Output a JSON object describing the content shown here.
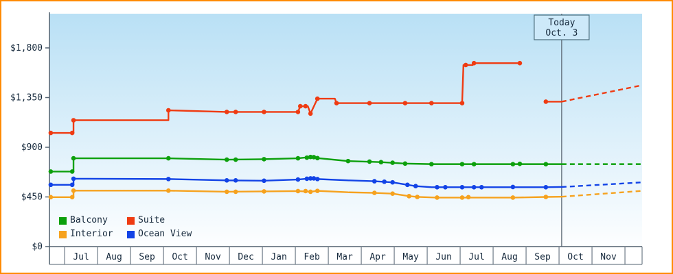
{
  "chart": {
    "colors": {
      "frame_border": "#ff8a00",
      "plot_bg_top": "#b9e0f5",
      "plot_bg_bottom": "#fdfeff",
      "axis": "#51606f",
      "text": "#16293c",
      "today_line": "#5a6672",
      "today_box_bg": "#cde9f9",
      "today_box_border": "#4a6b7a",
      "balcony": "#0ca00c",
      "suite": "#ef3b12",
      "interior": "#f6a21e",
      "ocean_view": "#1243e6"
    },
    "today_box": {
      "line1": "Today",
      "line2": "Oct. 3"
    },
    "y_axis": {
      "ticks": [
        {
          "label": "$1,800",
          "value": 1800
        },
        {
          "label": "$1,350",
          "value": 1350
        },
        {
          "label": "$900",
          "value": 900
        },
        {
          "label": "$450",
          "value": 450
        },
        {
          "label": "$0",
          "value": 0
        }
      ]
    },
    "x_axis": {
      "months": [
        "Jul",
        "Aug",
        "Sep",
        "Oct",
        "Nov",
        "Dec",
        "Jan",
        "Feb",
        "Mar",
        "Apr",
        "May",
        "Jun",
        "Jul",
        "Aug",
        "Sep",
        "Oct",
        "Nov"
      ]
    },
    "legend": [
      {
        "label": "Balcony",
        "color": "#0ca00c"
      },
      {
        "label": "Suite",
        "color": "#ef3b12"
      },
      {
        "label": "Interior",
        "color": "#f6a21e"
      },
      {
        "label": "Ocean View",
        "color": "#1243e6"
      }
    ]
  },
  "chart_data": {
    "type": "line",
    "style": "step",
    "title": "",
    "x_unit": "month index (0 = left edge of first Jul column)",
    "x_range": [
      -0.46,
      17.52
    ],
    "ylim": [
      0,
      2110
    ],
    "today_x": 15.08,
    "today_label": "Today Oct. 3",
    "grid": false,
    "legend_position": "bottom-left",
    "series": [
      {
        "id": "interior",
        "name": "Interior",
        "color": "#f6a21e",
        "segments": [
          [
            [
              -0.46,
              448
            ],
            [
              0.27,
              448
            ],
            [
              0.27,
              507
            ],
            [
              3.15,
              507
            ],
            [
              4.92,
              497
            ],
            [
              6.05,
              500
            ],
            [
              7.08,
              503
            ],
            [
              7.46,
              497
            ],
            [
              7.67,
              505
            ],
            [
              8.6,
              492
            ],
            [
              9.4,
              487
            ],
            [
              9.95,
              480
            ],
            [
              10.45,
              457
            ],
            [
              10.7,
              450
            ],
            [
              11.3,
              444
            ],
            [
              13.6,
              444
            ],
            [
              14.6,
              450
            ],
            [
              15.08,
              452
            ]
          ]
        ],
        "forecast": [
          [
            15.08,
            452
          ],
          [
            17.52,
            505
          ]
        ],
        "markers": [
          [
            -0.42,
            448
          ],
          [
            0.23,
            448
          ],
          [
            0.27,
            507
          ],
          [
            3.15,
            507
          ],
          [
            4.92,
            497
          ],
          [
            5.19,
            497
          ],
          [
            6.05,
            500
          ],
          [
            7.08,
            503
          ],
          [
            7.31,
            503
          ],
          [
            7.46,
            497
          ],
          [
            7.67,
            505
          ],
          [
            9.4,
            487
          ],
          [
            9.95,
            480
          ],
          [
            10.45,
            457
          ],
          [
            10.7,
            450
          ],
          [
            11.3,
            444
          ],
          [
            12.06,
            444
          ],
          [
            12.25,
            448
          ],
          [
            13.6,
            444
          ],
          [
            14.6,
            450
          ]
        ]
      },
      {
        "id": "ocean-view",
        "name": "Ocean View",
        "color": "#1243e6",
        "segments": [
          [
            [
              -0.46,
              560
            ],
            [
              0.27,
              560
            ],
            [
              0.27,
              615
            ],
            [
              3.15,
              612
            ],
            [
              4.92,
              600
            ],
            [
              6.05,
              597
            ],
            [
              7.08,
              608
            ],
            [
              7.46,
              618
            ],
            [
              7.67,
              612
            ],
            [
              8.6,
              600
            ],
            [
              9.4,
              592
            ],
            [
              9.95,
              582
            ],
            [
              10.4,
              560
            ],
            [
              10.65,
              548
            ],
            [
              11.13,
              538
            ],
            [
              14.6,
              538
            ],
            [
              15.08,
              540
            ]
          ]
        ],
        "forecast": [
          [
            15.08,
            540
          ],
          [
            17.52,
            582
          ]
        ],
        "markers": [
          [
            -0.42,
            560
          ],
          [
            0.23,
            560
          ],
          [
            0.27,
            615
          ],
          [
            3.15,
            612
          ],
          [
            4.92,
            600
          ],
          [
            5.19,
            600
          ],
          [
            6.05,
            597
          ],
          [
            7.08,
            608
          ],
          [
            7.35,
            615
          ],
          [
            7.46,
            618
          ],
          [
            7.56,
            618
          ],
          [
            7.67,
            612
          ],
          [
            9.4,
            592
          ],
          [
            9.7,
            588
          ],
          [
            9.95,
            582
          ],
          [
            10.4,
            560
          ],
          [
            10.65,
            548
          ],
          [
            11.3,
            538
          ],
          [
            11.55,
            538
          ],
          [
            12.06,
            538
          ],
          [
            12.42,
            538
          ],
          [
            12.65,
            538
          ],
          [
            13.6,
            540
          ],
          [
            14.6,
            538
          ]
        ]
      },
      {
        "id": "balcony",
        "name": "Balcony",
        "color": "#0ca00c",
        "segments": [
          [
            [
              -0.46,
              680
            ],
            [
              0.27,
              680
            ],
            [
              0.27,
              800
            ],
            [
              3.15,
              800
            ],
            [
              4.92,
              788
            ],
            [
              6.05,
              792
            ],
            [
              7.08,
              800
            ],
            [
              7.46,
              812
            ],
            [
              7.67,
              802
            ],
            [
              8.6,
              775
            ],
            [
              9.6,
              765
            ],
            [
              10.33,
              752
            ],
            [
              11.13,
              747
            ],
            [
              15.08,
              747
            ]
          ]
        ],
        "forecast": [
          [
            15.08,
            747
          ],
          [
            17.52,
            747
          ]
        ],
        "markers": [
          [
            -0.42,
            680
          ],
          [
            0.23,
            680
          ],
          [
            0.27,
            800
          ],
          [
            3.15,
            800
          ],
          [
            4.92,
            788
          ],
          [
            5.19,
            788
          ],
          [
            6.05,
            792
          ],
          [
            7.08,
            800
          ],
          [
            7.35,
            806
          ],
          [
            7.46,
            812
          ],
          [
            7.56,
            810
          ],
          [
            7.67,
            802
          ],
          [
            8.6,
            775
          ],
          [
            9.25,
            770
          ],
          [
            9.6,
            765
          ],
          [
            9.95,
            760
          ],
          [
            10.33,
            752
          ],
          [
            11.13,
            747
          ],
          [
            12.06,
            747
          ],
          [
            12.42,
            747
          ],
          [
            13.6,
            747
          ],
          [
            13.81,
            750
          ],
          [
            14.6,
            747
          ]
        ]
      },
      {
        "id": "suite",
        "name": "Suite",
        "color": "#ef3b12",
        "segments": [
          [
            [
              -0.46,
              1030
            ],
            [
              0.27,
              1030
            ],
            [
              0.27,
              1145
            ],
            [
              3.15,
              1145
            ],
            [
              3.15,
              1235
            ],
            [
              4.92,
              1220
            ],
            [
              7.08,
              1220
            ],
            [
              7.15,
              1272
            ],
            [
              7.38,
              1272
            ],
            [
              7.46,
              1205
            ],
            [
              7.67,
              1340
            ],
            [
              8.2,
              1340
            ],
            [
              8.25,
              1300
            ],
            [
              12.06,
              1300
            ],
            [
              12.1,
              1645
            ],
            [
              12.38,
              1645
            ],
            [
              12.42,
              1662
            ],
            [
              13.81,
              1662
            ]
          ],
          [
            [
              14.6,
              1313
            ],
            [
              15.08,
              1313
            ]
          ]
        ],
        "forecast": [
          [
            15.08,
            1313
          ],
          [
            17.52,
            1462
          ]
        ],
        "markers": [
          [
            -0.42,
            1030
          ],
          [
            0.23,
            1030
          ],
          [
            0.27,
            1145
          ],
          [
            3.15,
            1235
          ],
          [
            4.92,
            1220
          ],
          [
            5.19,
            1220
          ],
          [
            6.05,
            1220
          ],
          [
            7.08,
            1220
          ],
          [
            7.15,
            1272
          ],
          [
            7.31,
            1272
          ],
          [
            7.46,
            1205
          ],
          [
            7.67,
            1340
          ],
          [
            8.25,
            1300
          ],
          [
            9.25,
            1300
          ],
          [
            10.33,
            1300
          ],
          [
            11.13,
            1300
          ],
          [
            12.06,
            1300
          ],
          [
            12.17,
            1645
          ],
          [
            12.42,
            1662
          ],
          [
            13.81,
            1662
          ],
          [
            14.6,
            1313
          ]
        ]
      }
    ]
  }
}
